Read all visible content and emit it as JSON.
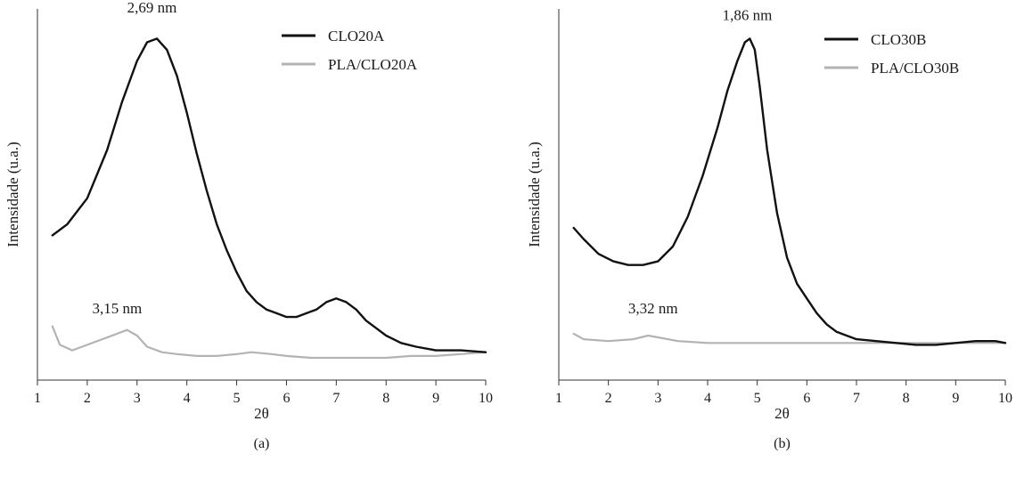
{
  "chart_data": [
    {
      "type": "line",
      "panel_label": "(a)",
      "xlabel": "2θ",
      "ylabel": "Intensidade (u.a.)",
      "xlim": [
        1,
        10
      ],
      "xticks": [
        "1",
        "2",
        "3",
        "4",
        "5",
        "6",
        "7",
        "8",
        "9",
        "10"
      ],
      "ylim": [
        0,
        100
      ],
      "y_tick_labels": false,
      "grid": false,
      "legend_position": "top-right",
      "series": [
        {
          "name": "CLO20A",
          "color": "#111111",
          "x": [
            1.3,
            1.6,
            2.0,
            2.4,
            2.7,
            3.0,
            3.2,
            3.4,
            3.6,
            3.8,
            4.0,
            4.2,
            4.4,
            4.6,
            4.8,
            5.0,
            5.2,
            5.4,
            5.6,
            5.8,
            6.0,
            6.2,
            6.4,
            6.6,
            6.8,
            7.0,
            7.2,
            7.4,
            7.6,
            7.8,
            8.0,
            8.3,
            8.6,
            9.0,
            9.5,
            10.0
          ],
          "y": [
            39,
            42,
            49,
            62,
            75,
            86,
            91,
            92,
            89,
            82,
            72,
            61,
            51,
            42,
            35,
            29,
            24,
            21,
            19,
            18,
            17,
            17,
            18,
            19,
            21,
            22,
            21,
            19,
            16,
            14,
            12,
            10,
            9,
            8,
            8,
            7.5
          ]
        },
        {
          "name": "PLA/CLO20A",
          "color": "#b3b3b3",
          "x": [
            1.3,
            1.45,
            1.7,
            2.0,
            2.3,
            2.6,
            2.8,
            3.0,
            3.2,
            3.5,
            3.8,
            4.2,
            4.6,
            5.0,
            5.3,
            5.7,
            6.0,
            6.5,
            7.0,
            7.5,
            8.0,
            8.5,
            9.0,
            9.5,
            10.0
          ],
          "y": [
            14.5,
            9.5,
            8.0,
            9.5,
            11.0,
            12.5,
            13.5,
            12.0,
            9.0,
            7.5,
            7.0,
            6.5,
            6.5,
            7.0,
            7.5,
            7.0,
            6.5,
            6.0,
            6.0,
            6.0,
            6.0,
            6.5,
            6.5,
            7.0,
            7.5
          ]
        }
      ],
      "annotations": [
        {
          "text": "2,69 nm",
          "x": 3.3,
          "y": 99
        },
        {
          "text": "3,15 nm",
          "x": 2.6,
          "y": 18
        }
      ]
    },
    {
      "type": "line",
      "panel_label": "(b)",
      "xlabel": "2θ",
      "ylabel": "Intensidade (u.a.)",
      "xlim": [
        1,
        10
      ],
      "xticks": [
        "1",
        "2",
        "3",
        "4",
        "5",
        "6",
        "7",
        "8",
        "9",
        "10"
      ],
      "ylim": [
        0,
        100
      ],
      "y_tick_labels": false,
      "grid": false,
      "legend_position": "top-right",
      "series": [
        {
          "name": "CLO30B",
          "color": "#111111",
          "x": [
            1.3,
            1.5,
            1.8,
            2.1,
            2.4,
            2.7,
            3.0,
            3.3,
            3.6,
            3.9,
            4.2,
            4.4,
            4.6,
            4.75,
            4.85,
            4.95,
            5.05,
            5.2,
            5.4,
            5.6,
            5.8,
            6.0,
            6.2,
            6.4,
            6.6,
            6.8,
            7.0,
            7.4,
            7.8,
            8.2,
            8.6,
            9.0,
            9.4,
            9.8,
            10.0
          ],
          "y": [
            41,
            38,
            34,
            32,
            31,
            31,
            32,
            36,
            44,
            55,
            68,
            78,
            86,
            91,
            92,
            89,
            79,
            62,
            45,
            33,
            26,
            22,
            18,
            15,
            13,
            12,
            11,
            10.5,
            10,
            9.5,
            9.5,
            10,
            10.5,
            10.5,
            10
          ]
        },
        {
          "name": "PLA/CLO30B",
          "color": "#b3b3b3",
          "x": [
            1.3,
            1.5,
            2.0,
            2.5,
            2.8,
            3.0,
            3.4,
            4.0,
            5.0,
            6.0,
            7.0,
            8.0,
            9.0,
            10.0
          ],
          "y": [
            12.5,
            11.0,
            10.5,
            11.0,
            12.0,
            11.5,
            10.5,
            10.0,
            10.0,
            10.0,
            10.0,
            10.0,
            10.0,
            10.0
          ]
        }
      ],
      "annotations": [
        {
          "text": "1,86 nm",
          "x": 4.8,
          "y": 97
        },
        {
          "text": "3,32 nm",
          "x": 2.9,
          "y": 18
        }
      ]
    }
  ]
}
